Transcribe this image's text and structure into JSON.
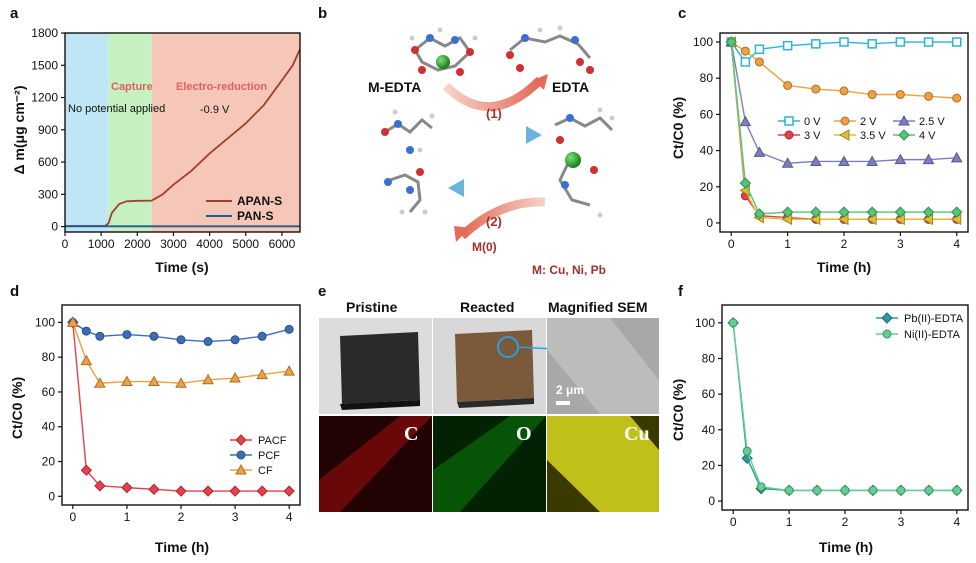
{
  "panel_labels": [
    "a",
    "b",
    "c",
    "d",
    "e",
    "f"
  ],
  "colors": {
    "blue": "#29b5d6",
    "orange": "#f0a040",
    "purple": "#7b7fc2",
    "red": "#e8404a",
    "yellow": "#e0c030",
    "green": "#50c878",
    "brown": "#a0402a",
    "navy": "#1f5f8f",
    "teal": "#2a9aa6",
    "lightgreen": "#60d090"
  },
  "chart_data": [
    {
      "panel": "a",
      "type": "line",
      "xlabel": "Time (s)",
      "ylabel": "Δ m(μg cm⁻²)",
      "xlim": [
        0,
        6500
      ],
      "ylim": [
        -50,
        1800
      ],
      "xticks": [
        0,
        1000,
        2000,
        3000,
        4000,
        5000,
        6000
      ],
      "yticks": [
        0,
        300,
        600,
        900,
        1200,
        1500,
        1800
      ],
      "regions": [
        {
          "label": "No potential applied",
          "from": 0,
          "to": 1200,
          "color": "#bfe6f5"
        },
        {
          "label": "Capture",
          "from": 1200,
          "to": 2400,
          "color": "#c6f0c0"
        },
        {
          "label": "Electro-reduction",
          "from": 2400,
          "to": 6500,
          "color": "#f6c7b8"
        }
      ],
      "annotation": "-0.9 V",
      "series": [
        {
          "name": "APAN-S",
          "color": "#a0402a",
          "x": [
            0,
            1100,
            1200,
            1300,
            1500,
            1700,
            2000,
            2400,
            2700,
            3000,
            3500,
            4000,
            4500,
            5000,
            5500,
            6000,
            6300,
            6500
          ],
          "y": [
            5,
            5,
            30,
            130,
            210,
            235,
            240,
            242,
            300,
            390,
            520,
            680,
            820,
            960,
            1130,
            1360,
            1500,
            1650
          ]
        },
        {
          "name": "PAN-S",
          "color": "#1f5f8f",
          "x": [
            0,
            6500
          ],
          "y": [
            3,
            3
          ]
        }
      ]
    },
    {
      "panel": "b",
      "type": "diagram",
      "labels": {
        "medta": "M-EDTA",
        "edta": "EDTA",
        "step1": "(1)",
        "step2": "(2)",
        "m0": "M(0)",
        "metals": "M: Cu, Ni, Pb"
      }
    },
    {
      "panel": "c",
      "type": "line",
      "xlabel": "Time (h)",
      "ylabel": "Ct/C0 (%)",
      "xlim": [
        -0.2,
        4.2
      ],
      "ylim": [
        -5,
        105
      ],
      "xticks": [
        0,
        1,
        2,
        3,
        4
      ],
      "yticks": [
        0,
        20,
        40,
        60,
        80,
        100
      ],
      "x": [
        0,
        0.25,
        0.5,
        1,
        1.5,
        2,
        2.5,
        3,
        3.5,
        4
      ],
      "series": [
        {
          "name": "0 V",
          "color": "#29b5d6",
          "marker": "square",
          "values": [
            100,
            89,
            96,
            98,
            99,
            100,
            99,
            100,
            100,
            100
          ]
        },
        {
          "name": "2 V",
          "color": "#f0a040",
          "marker": "circle",
          "values": [
            100,
            95,
            89,
            76,
            74,
            73,
            71,
            71,
            70,
            69
          ]
        },
        {
          "name": "2.5 V",
          "color": "#7b7fc2",
          "marker": "triangle-up",
          "values": [
            100,
            56,
            39,
            33,
            34,
            34,
            34,
            35,
            35,
            36
          ]
        },
        {
          "name": "3 V",
          "color": "#e8404a",
          "marker": "circle",
          "values": [
            100,
            15,
            4,
            3,
            2,
            2,
            2,
            2,
            2,
            2
          ]
        },
        {
          "name": "3.5 V",
          "color": "#e0c030",
          "marker": "triangle-left",
          "values": [
            100,
            18,
            3,
            2,
            2,
            2,
            2,
            2,
            2,
            2
          ]
        },
        {
          "name": "4 V",
          "color": "#50c878",
          "marker": "diamond",
          "values": [
            100,
            22,
            5,
            6,
            6,
            6,
            6,
            6,
            6,
            6
          ]
        }
      ]
    },
    {
      "panel": "d",
      "type": "line",
      "xlabel": "Time (h)",
      "ylabel": "Ct/C0 (%)",
      "xlim": [
        -0.2,
        4.2
      ],
      "ylim": [
        -5,
        110
      ],
      "xticks": [
        0,
        1,
        2,
        3,
        4
      ],
      "yticks": [
        0,
        20,
        40,
        60,
        80,
        100
      ],
      "x": [
        0,
        0.25,
        0.5,
        1,
        1.5,
        2,
        2.5,
        3,
        3.5,
        4
      ],
      "series": [
        {
          "name": "PACF",
          "color": "#e8404a",
          "marker": "diamond",
          "values": [
            100,
            15,
            6,
            5,
            4,
            3,
            3,
            3,
            3,
            3
          ]
        },
        {
          "name": "PCF",
          "color": "#3a6fb8",
          "marker": "circle",
          "values": [
            100,
            95,
            92,
            93,
            92,
            90,
            89,
            90,
            92,
            96
          ]
        },
        {
          "name": "CF",
          "color": "#f0a040",
          "marker": "triangle-up",
          "values": [
            100,
            78,
            65,
            66,
            66,
            65,
            67,
            68,
            70,
            72
          ]
        }
      ]
    },
    {
      "panel": "e",
      "type": "image",
      "labels": {
        "pristine": "Pristine",
        "reacted": "Reacted",
        "sem": "Magnified SEM",
        "scale": "2 μm",
        "c": "C",
        "o": "O",
        "cu": "Cu"
      }
    },
    {
      "panel": "f",
      "type": "line",
      "xlabel": "Time (h)",
      "ylabel": "Ct/C0 (%)",
      "xlim": [
        -0.2,
        4.2
      ],
      "ylim": [
        -5,
        110
      ],
      "xticks": [
        0,
        1,
        2,
        3,
        4
      ],
      "yticks": [
        0,
        20,
        40,
        60,
        80,
        100
      ],
      "x": [
        0,
        0.25,
        0.5,
        1,
        1.5,
        2,
        2.5,
        3,
        3.5,
        4
      ],
      "series": [
        {
          "name": "Pb(II)-EDTA",
          "color": "#2a9aa6",
          "marker": "diamond",
          "values": [
            100,
            24,
            7,
            6,
            6,
            6,
            6,
            6,
            6,
            6
          ]
        },
        {
          "name": "Ni(II)-EDTA",
          "color": "#60d090",
          "marker": "circle",
          "values": [
            100,
            28,
            8,
            6,
            6,
            6,
            6,
            6,
            6,
            6
          ]
        }
      ]
    }
  ]
}
